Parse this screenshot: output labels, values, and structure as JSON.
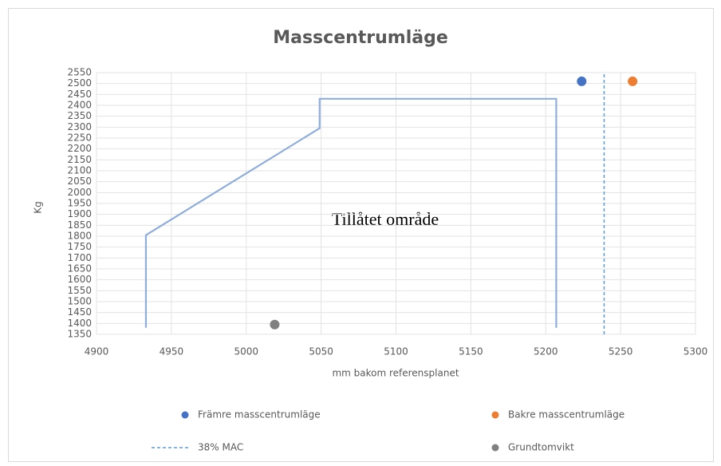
{
  "chart_data": {
    "type": "scatter",
    "title": "Masscentrumläge",
    "x_label": "mm bakom referensplanet",
    "y_label": "Kg",
    "annotation": "Tillåtet område",
    "xlim": [
      4900,
      5300
    ],
    "xticks": [
      4900,
      4950,
      5000,
      5050,
      5100,
      5150,
      5200,
      5250,
      5300
    ],
    "ylim": [
      1350,
      2550
    ],
    "yticks": [
      1350,
      1400,
      1450,
      1500,
      1550,
      1600,
      1650,
      1700,
      1750,
      1800,
      1850,
      1900,
      1950,
      2000,
      2050,
      2100,
      2150,
      2200,
      2250,
      2300,
      2350,
      2400,
      2450,
      2500,
      2550
    ],
    "grid": true,
    "series": [
      {
        "color": "#8faedb",
        "style": "line",
        "x": [
          4933,
          4933,
          5049,
          5049,
          5207,
          5207
        ],
        "values": [
          1380,
          1805,
          2295,
          2430,
          2430,
          1380
        ]
      },
      {
        "name": "Främre masscentrumläge",
        "color": "#4472c4",
        "style": "marker",
        "x": [
          5224
        ],
        "values": [
          2510
        ]
      },
      {
        "name": "Bakre masscentrumläge",
        "color": "#ed7d31",
        "style": "marker",
        "x": [
          5258
        ],
        "values": [
          2510
        ]
      },
      {
        "name": "38% MAC",
        "color": "#5b9bd5",
        "style": "dashed",
        "x": [
          5239,
          5239
        ],
        "values": [
          1350,
          2550
        ]
      },
      {
        "name": "Grundtomvikt",
        "color": "#808080",
        "style": "marker",
        "x": [
          5019
        ],
        "values": [
          1395
        ]
      }
    ]
  }
}
